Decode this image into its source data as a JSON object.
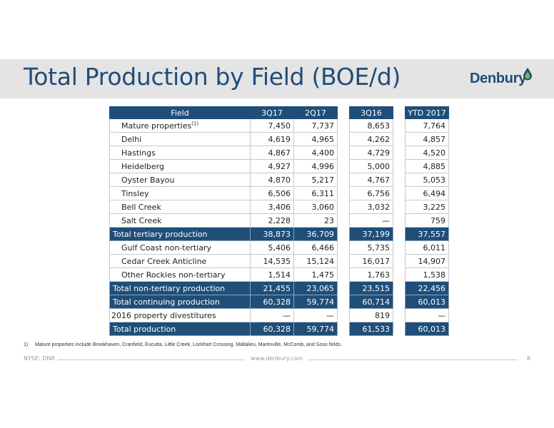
{
  "title": "Total Production by Field (BOE/d)",
  "logo_text": "Denbury",
  "table": {
    "header": [
      "Field",
      "3Q17",
      "2Q17",
      "3Q16",
      "YTD 2017"
    ],
    "rows": [
      {
        "label": "Mature properties",
        "sup": "(1)",
        "v": [
          "7,450",
          "7,737",
          "8,653",
          "7,764"
        ],
        "total": false
      },
      {
        "label": "Delhi",
        "v": [
          "4,619",
          "4,965",
          "4,262",
          "4,857"
        ],
        "total": false
      },
      {
        "label": "Hastings",
        "v": [
          "4,867",
          "4,400",
          "4,729",
          "4,520"
        ],
        "total": false
      },
      {
        "label": "Heidelberg",
        "v": [
          "4,927",
          "4,996",
          "5,000",
          "4,885"
        ],
        "total": false
      },
      {
        "label": "Oyster Bayou",
        "v": [
          "4,870",
          "5,217",
          "4,767",
          "5,053"
        ],
        "total": false
      },
      {
        "label": "Tinsley",
        "v": [
          "6,506",
          "6,311",
          "6,756",
          "6,494"
        ],
        "total": false
      },
      {
        "label": "Bell Creek",
        "v": [
          "3,406",
          "3,060",
          "3,032",
          "3,225"
        ],
        "total": false
      },
      {
        "label": "Salt Creek",
        "v": [
          "2,228",
          "23",
          "—",
          "759"
        ],
        "total": false
      },
      {
        "label": "Total tertiary production",
        "v": [
          "38,873",
          "36,709",
          "37,199",
          "37,557"
        ],
        "total": true
      },
      {
        "label": "Gulf Coast non-tertiary",
        "v": [
          "5,406",
          "6,466",
          "5,735",
          "6,011"
        ],
        "total": false
      },
      {
        "label": "Cedar Creek Anticline",
        "v": [
          "14,535",
          "15,124",
          "16,017",
          "14,907"
        ],
        "total": false
      },
      {
        "label": "Other Rockies non-tertiary",
        "v": [
          "1,514",
          "1,475",
          "1,763",
          "1,538"
        ],
        "total": false
      },
      {
        "label": "Total non-tertiary production",
        "v": [
          "21,455",
          "23,065",
          "23,515",
          "22,456"
        ],
        "total": true
      },
      {
        "label": "Total continuing production",
        "v": [
          "60,328",
          "59,774",
          "60,714",
          "60,013"
        ],
        "total": true
      },
      {
        "label": "2016 property divestitures",
        "v": [
          "—",
          "—",
          "819",
          "—"
        ],
        "total": false,
        "flush": true
      },
      {
        "label": "Total production",
        "v": [
          "60,328",
          "59,774",
          "61,533",
          "60,013"
        ],
        "total": true
      }
    ]
  },
  "footnote": {
    "num": "1)",
    "text": "Mature properties include Brookhaven, Cranfield, Eucutta, Little Creek, Lockhart Crossing, Mallalieu, Martinville, McComb, and Soso fields."
  },
  "footer": {
    "left": "NYSE: DNR",
    "center": "www.denbury.com",
    "page": "8"
  },
  "colors": {
    "brand": "#1f4e79",
    "band": "#e4e4e4",
    "drop": "#7ab648"
  }
}
